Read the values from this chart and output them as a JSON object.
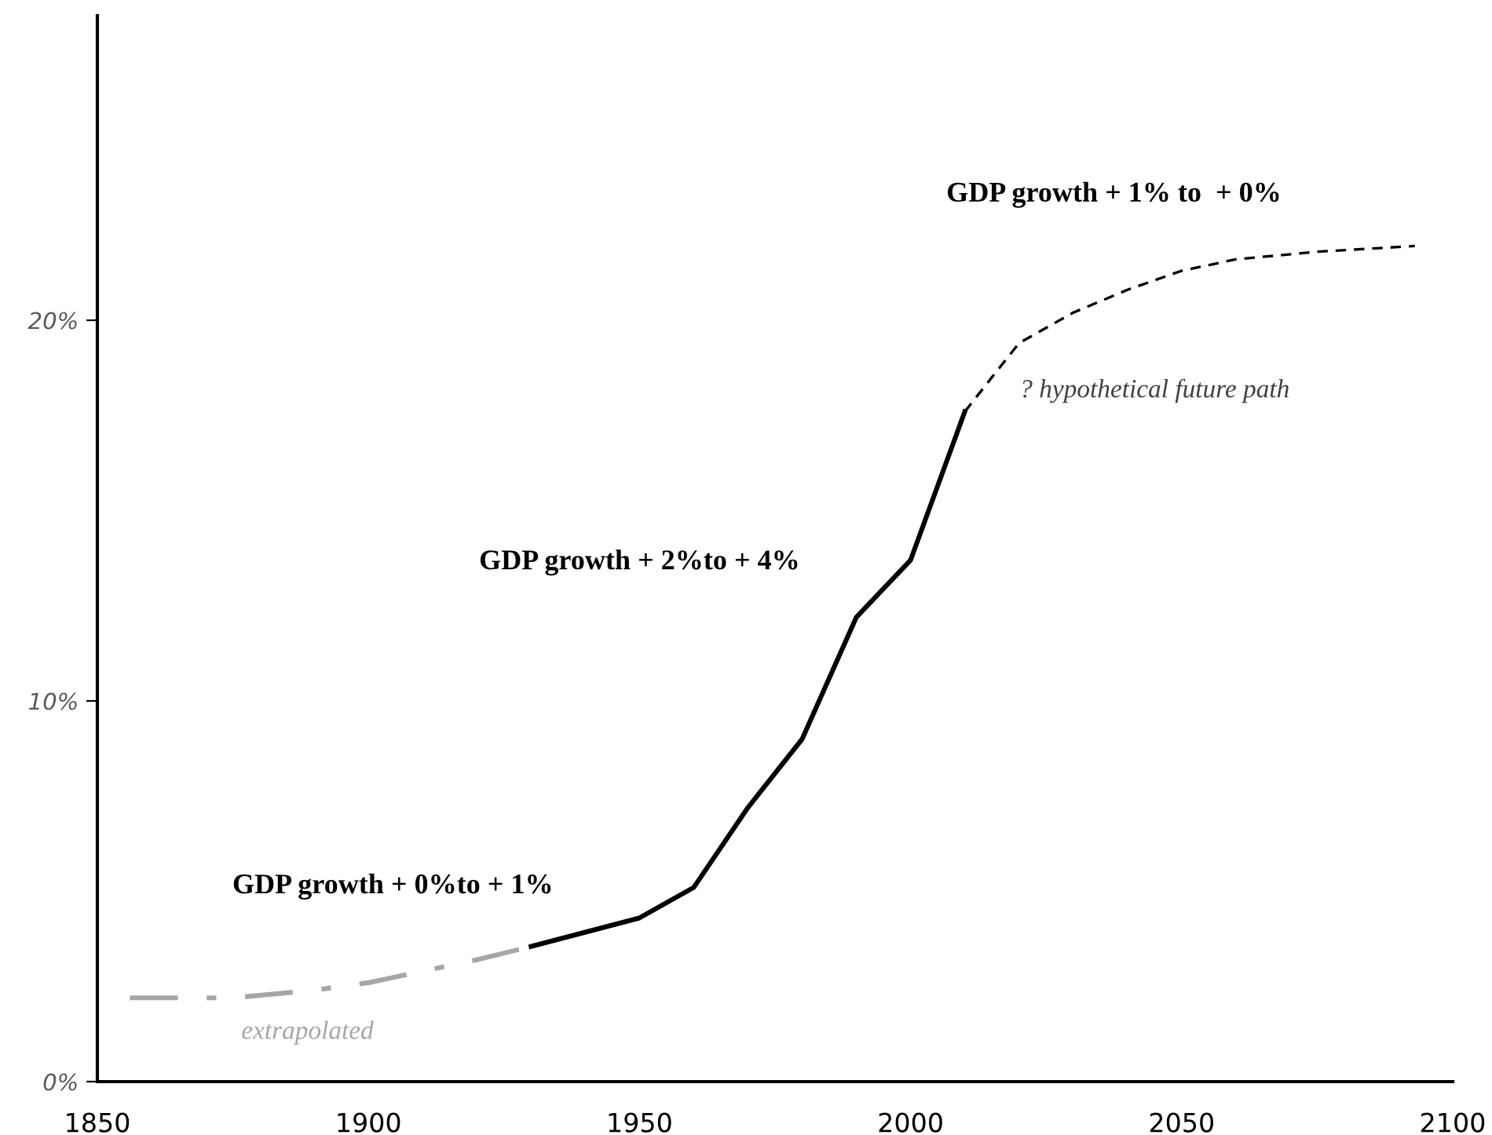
{
  "chart_data": {
    "type": "line",
    "xlim": [
      1850,
      2100
    ],
    "xticks": [
      1850,
      1900,
      1950,
      2000,
      2050,
      2100
    ],
    "ylim": [
      0,
      28
    ],
    "yticks": [
      {
        "value": 0,
        "label": "0%"
      },
      {
        "value": 10,
        "label": "10%"
      },
      {
        "value": 20,
        "label": "20%"
      }
    ],
    "grid": false,
    "legend": false,
    "series": [
      {
        "color": "#a6a6a6",
        "line_style": "dashdot",
        "x": [
          1856,
          1875,
          1890,
          1900,
          1910,
          1920,
          1930
        ],
        "values": [
          2.2,
          2.2,
          2.4,
          2.6,
          2.9,
          3.2,
          3.55
        ]
      },
      {
        "color": "#000000",
        "line_style": "solid",
        "x": [
          1930,
          1950,
          1960,
          1970,
          1980,
          1990,
          2000,
          2010
        ],
        "values": [
          3.55,
          4.3,
          5.1,
          7.2,
          9.0,
          12.2,
          13.7,
          17.6
        ]
      },
      {
        "color": "#000000",
        "line_style": "dashed",
        "x": [
          2010,
          2020,
          2030,
          2040,
          2050,
          2060,
          2075,
          2093
        ],
        "values": [
          17.6,
          19.4,
          20.2,
          20.8,
          21.3,
          21.6,
          21.8,
          21.95
        ]
      }
    ],
    "annotations": [
      "GDP growth + 0%to + 1%",
      "GDP growth + 2%to + 4%",
      "GDP growth + 1% to  + 0%",
      "? hypothetical future path",
      "extrapolated"
    ]
  }
}
